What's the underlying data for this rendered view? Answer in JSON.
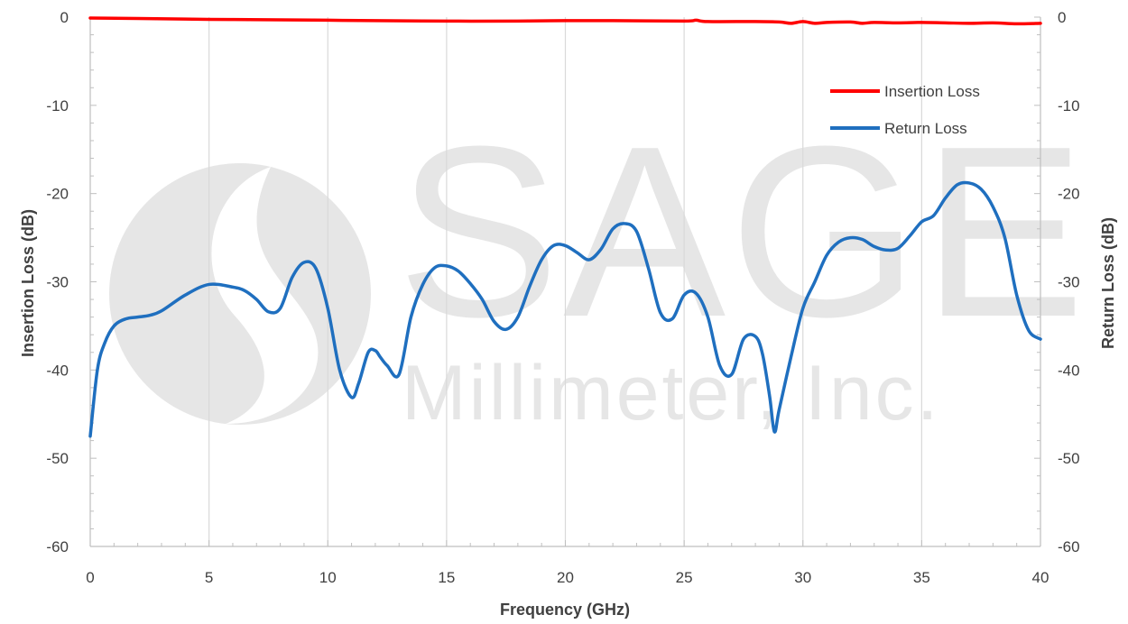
{
  "chart_data": {
    "type": "line",
    "xlabel": "Frequency (GHz)",
    "ylabel": "Insertion Loss (dB)",
    "y2label": "Return Loss (dB)",
    "xlim": [
      0,
      40
    ],
    "ylim": [
      -60,
      0
    ],
    "y2lim": [
      -60,
      0
    ],
    "x_ticks": [
      0,
      5,
      10,
      15,
      20,
      25,
      30,
      35,
      40
    ],
    "y_ticks": [
      0,
      -10,
      -20,
      -30,
      -40,
      -50,
      -60
    ],
    "y2_ticks": [
      0,
      -10,
      -20,
      -30,
      -40,
      -50,
      -60
    ],
    "grid": "vertical",
    "legend_position": "top-right",
    "watermark": {
      "line1": "SAGE",
      "line2": "Millimeter, Inc."
    },
    "series": [
      {
        "name": "Insertion Loss",
        "color": "#ff0000",
        "axis": "left",
        "x": [
          0,
          2,
          5,
          8,
          10,
          12,
          15,
          18,
          20,
          22,
          25,
          25.5,
          26,
          28,
          29,
          29.5,
          30,
          30.5,
          31,
          32,
          32.5,
          33,
          34,
          35,
          36,
          37,
          38,
          39,
          40
        ],
        "y": [
          -0.1,
          -0.15,
          -0.25,
          -0.3,
          -0.35,
          -0.4,
          -0.45,
          -0.45,
          -0.4,
          -0.4,
          -0.45,
          -0.35,
          -0.5,
          -0.5,
          -0.55,
          -0.7,
          -0.5,
          -0.7,
          -0.6,
          -0.55,
          -0.7,
          -0.6,
          -0.65,
          -0.6,
          -0.65,
          -0.7,
          -0.65,
          -0.75,
          -0.7
        ]
      },
      {
        "name": "Return Loss",
        "color": "#1f6fbf",
        "axis": "right",
        "x": [
          0,
          0.3,
          0.6,
          1,
          1.5,
          2,
          2.5,
          3,
          4,
          5,
          6,
          6.5,
          7,
          7.5,
          8,
          8.5,
          9,
          9.5,
          10,
          10.5,
          11,
          11.3,
          11.7,
          12,
          12.2,
          12.5,
          13,
          13.5,
          14,
          14.5,
          15,
          15.5,
          16,
          16.5,
          17,
          17.5,
          18,
          18.5,
          19,
          19.5,
          20,
          20.5,
          21,
          21.5,
          22,
          22.5,
          23,
          23.5,
          24,
          24.5,
          25,
          25.5,
          26,
          26.5,
          27,
          27.5,
          28,
          28.3,
          28.6,
          28.8,
          29,
          29.5,
          30,
          30.5,
          31,
          31.5,
          32,
          32.5,
          33,
          33.5,
          34,
          34.5,
          35,
          35.5,
          36,
          36.5,
          37,
          37.5,
          38,
          38.5,
          39,
          39.5,
          40
        ],
        "y": [
          -47.5,
          -40,
          -37,
          -35,
          -34.2,
          -34,
          -33.8,
          -33.3,
          -31.5,
          -30.3,
          -30.6,
          -31,
          -32,
          -33.4,
          -33,
          -29.5,
          -27.8,
          -28.5,
          -33,
          -40,
          -43.1,
          -41.5,
          -38,
          -37.8,
          -38.5,
          -39.5,
          -40.5,
          -34,
          -30.3,
          -28.4,
          -28.2,
          -28.8,
          -30.2,
          -32,
          -34.5,
          -35.4,
          -34,
          -30.5,
          -27.5,
          -25.9,
          -25.9,
          -26.7,
          -27.5,
          -26.3,
          -24,
          -23.4,
          -24.3,
          -28.5,
          -33.5,
          -34.2,
          -31.5,
          -31.3,
          -34,
          -39.5,
          -40.5,
          -36.5,
          -36.2,
          -38.2,
          -43,
          -47,
          -44.5,
          -38.5,
          -33,
          -30,
          -27,
          -25.5,
          -25,
          -25.2,
          -26,
          -26.4,
          -26.2,
          -24.8,
          -23.2,
          -22.5,
          -20.5,
          -19,
          -18.8,
          -19.5,
          -21.5,
          -25,
          -31.5,
          -35.5,
          -36.5
        ]
      }
    ]
  }
}
